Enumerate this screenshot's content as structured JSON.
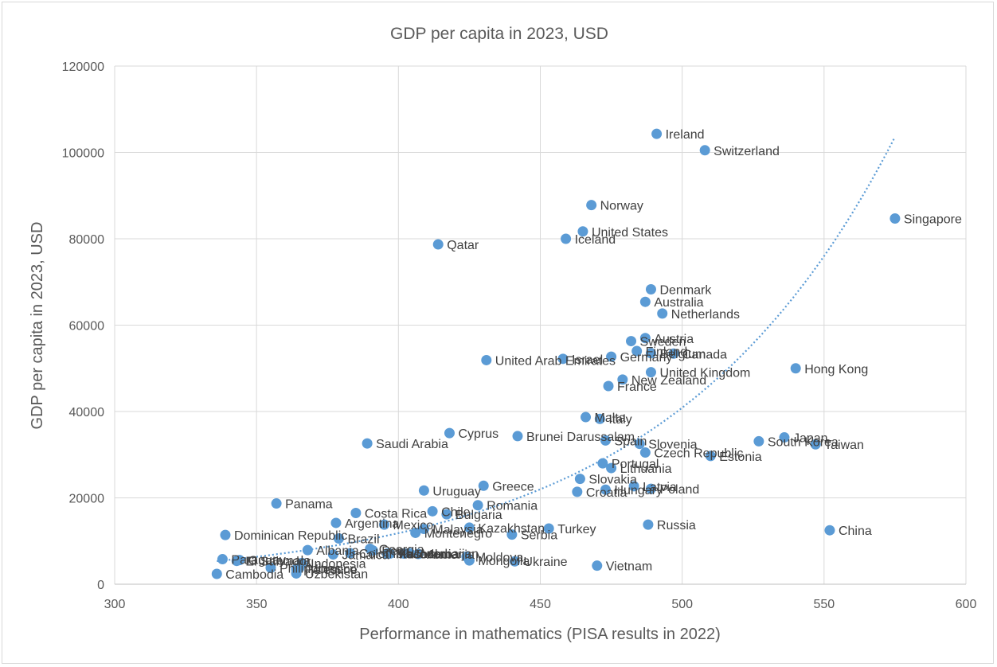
{
  "chart_data": {
    "type": "scatter",
    "title": "GDP per capita in 2023, USD",
    "xlabel": "Performance in mathematics (PISA results in 2022)",
    "ylabel": "GDP per capita in 2023, USD",
    "xlim": [
      300,
      600
    ],
    "ylim": [
      0,
      120000
    ],
    "xticks": [
      "300",
      "350",
      "400",
      "450",
      "500",
      "550",
      "600"
    ],
    "yticks": [
      "0",
      "20000",
      "40000",
      "60000",
      "80000",
      "100000",
      "120000"
    ],
    "grid": true,
    "marker_color": "#5b9bd5",
    "trendline": {
      "type": "exponential",
      "style": "dotted",
      "color": "#5b9bd5",
      "x_range": [
        336,
        575
      ]
    },
    "points": [
      {
        "name": "Ireland",
        "x": 491,
        "y": 104300
      },
      {
        "name": "Switzerland",
        "x": 508,
        "y": 100500
      },
      {
        "name": "Norway",
        "x": 468,
        "y": 87800
      },
      {
        "name": "Singapore",
        "x": 575,
        "y": 84700
      },
      {
        "name": "United States",
        "x": 465,
        "y": 81700
      },
      {
        "name": "Qatar",
        "x": 414,
        "y": 78700
      },
      {
        "name": "Iceland",
        "x": 459,
        "y": 80000
      },
      {
        "name": "Denmark",
        "x": 489,
        "y": 68300
      },
      {
        "name": "Australia",
        "x": 487,
        "y": 65400
      },
      {
        "name": "Netherlands",
        "x": 493,
        "y": 62700
      },
      {
        "name": "Austria",
        "x": 487,
        "y": 57000
      },
      {
        "name": "Sweden",
        "x": 482,
        "y": 56300
      },
      {
        "name": "Finland",
        "x": 484,
        "y": 54000
      },
      {
        "name": "Belgium",
        "x": 489,
        "y": 53500
      },
      {
        "name": "Canada",
        "x": 497,
        "y": 53400
      },
      {
        "name": "Germany",
        "x": 475,
        "y": 52700
      },
      {
        "name": "United Arab Emirates",
        "x": 431,
        "y": 51900
      },
      {
        "name": "Israel",
        "x": 458,
        "y": 52200
      },
      {
        "name": "United Kingdom",
        "x": 489,
        "y": 49100
      },
      {
        "name": "Hong Kong",
        "x": 540,
        "y": 50000
      },
      {
        "name": "New Zealand",
        "x": 479,
        "y": 47400
      },
      {
        "name": "France",
        "x": 474,
        "y": 45900
      },
      {
        "name": "Malta",
        "x": 466,
        "y": 38700
      },
      {
        "name": "Italy",
        "x": 471,
        "y": 38300
      },
      {
        "name": "Cyprus",
        "x": 418,
        "y": 35000
      },
      {
        "name": "Brunei Darussalam",
        "x": 442,
        "y": 34300
      },
      {
        "name": "Spain",
        "x": 473,
        "y": 33300
      },
      {
        "name": "Slovenia",
        "x": 485,
        "y": 32500
      },
      {
        "name": "South Korea",
        "x": 527,
        "y": 33100
      },
      {
        "name": "Japan",
        "x": 536,
        "y": 34000
      },
      {
        "name": "Taiwan",
        "x": 547,
        "y": 32400
      },
      {
        "name": "Saudi Arabia",
        "x": 389,
        "y": 32600
      },
      {
        "name": "Czech Republic",
        "x": 487,
        "y": 30500
      },
      {
        "name": "Estonia",
        "x": 510,
        "y": 29700
      },
      {
        "name": "Portugal",
        "x": 472,
        "y": 28000
      },
      {
        "name": "Lithuania",
        "x": 475,
        "y": 26900
      },
      {
        "name": "Slovakia",
        "x": 464,
        "y": 24400
      },
      {
        "name": "Latvia",
        "x": 483,
        "y": 22700
      },
      {
        "name": "Hungary",
        "x": 473,
        "y": 21900
      },
      {
        "name": "Poland",
        "x": 489,
        "y": 22100
      },
      {
        "name": "Croatia",
        "x": 463,
        "y": 21400
      },
      {
        "name": "Uruguay",
        "x": 409,
        "y": 21700
      },
      {
        "name": "Greece",
        "x": 430,
        "y": 22800
      },
      {
        "name": "Panama",
        "x": 357,
        "y": 18700
      },
      {
        "name": "Romania",
        "x": 428,
        "y": 18300
      },
      {
        "name": "Costa Rica",
        "x": 385,
        "y": 16500
      },
      {
        "name": "Chile",
        "x": 412,
        "y": 16900
      },
      {
        "name": "Bulgaria",
        "x": 417,
        "y": 16200
      },
      {
        "name": "Argentina",
        "x": 378,
        "y": 14200
      },
      {
        "name": "Mexico",
        "x": 395,
        "y": 13800
      },
      {
        "name": "Malaysia",
        "x": 409,
        "y": 12800
      },
      {
        "name": "Kazakhstan",
        "x": 425,
        "y": 13100
      },
      {
        "name": "Turkey",
        "x": 453,
        "y": 12900
      },
      {
        "name": "Russia",
        "x": 488,
        "y": 13800
      },
      {
        "name": "China",
        "x": 552,
        "y": 12500
      },
      {
        "name": "Dominican Republic",
        "x": 339,
        "y": 11400
      },
      {
        "name": "Brazil",
        "x": 379,
        "y": 10600
      },
      {
        "name": "Montenegro",
        "x": 406,
        "y": 11900
      },
      {
        "name": "Serbia",
        "x": 440,
        "y": 11500
      },
      {
        "name": "Albania",
        "x": 368,
        "y": 7900
      },
      {
        "name": "Colombia",
        "x": 383,
        "y": 7200
      },
      {
        "name": "Peru",
        "x": 391,
        "y": 7800
      },
      {
        "name": "Georgia",
        "x": 390,
        "y": 8200
      },
      {
        "name": "Jamaica",
        "x": 377,
        "y": 6900
      },
      {
        "name": "Kosovo",
        "x": 397,
        "y": 7100
      },
      {
        "name": "Macedonia",
        "x": 396,
        "y": 7100
      },
      {
        "name": "Jordan",
        "x": 402,
        "y": 7100
      },
      {
        "name": "Azerbaijan",
        "x": 404,
        "y": 7200
      },
      {
        "name": "Armenia",
        "x": 407,
        "y": 7000
      },
      {
        "name": "Moldova",
        "x": 424,
        "y": 6400
      },
      {
        "name": "Mongolia",
        "x": 425,
        "y": 5500
      },
      {
        "name": "Ukraine",
        "x": 441,
        "y": 5300
      },
      {
        "name": "Vietnam",
        "x": 470,
        "y": 4300
      },
      {
        "name": "Paraguay",
        "x": 338,
        "y": 5800
      },
      {
        "name": "El Salvador",
        "x": 343,
        "y": 5400
      },
      {
        "name": "Guatemala",
        "x": 344,
        "y": 5600
      },
      {
        "name": "Indonesia",
        "x": 366,
        "y": 4900
      },
      {
        "name": "Morocco",
        "x": 365,
        "y": 3700
      },
      {
        "name": "Philippines",
        "x": 355,
        "y": 3800
      },
      {
        "name": "Palestine",
        "x": 364,
        "y": 3500
      },
      {
        "name": "Uzbekistan",
        "x": 364,
        "y": 2500
      },
      {
        "name": "Cambodia",
        "x": 336,
        "y": 2400
      }
    ]
  }
}
